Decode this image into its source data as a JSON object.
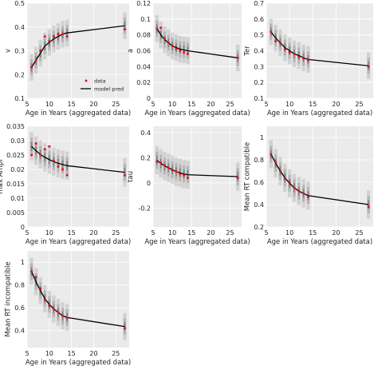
{
  "figure": {
    "xlabel": "Age in Years (aggregated data)"
  },
  "chart_data": [
    {
      "type": "scatter",
      "ylabel": "v",
      "xlabel": "Age in Years (aggregated data)",
      "xlim": [
        5,
        28
      ],
      "xticks": [
        5,
        10,
        15,
        20,
        25
      ],
      "ylim": [
        0.1,
        0.5
      ],
      "yticks": [
        0.1,
        0.2,
        0.3,
        0.4,
        0.5
      ],
      "grid": true,
      "legend": {
        "placement": "bottom-right",
        "entries": [
          "data",
          "model pred"
        ]
      },
      "series": [
        {
          "name": "data",
          "x": [
            6,
            7,
            8,
            9,
            10,
            11,
            12,
            13,
            14,
            27
          ],
          "y": [
            0.23,
            0.26,
            0.3,
            0.36,
            0.34,
            0.36,
            0.37,
            0.37,
            0.36,
            0.39
          ]
        },
        {
          "name": "model pred",
          "x": [
            6,
            7,
            8,
            9,
            10,
            11,
            12,
            13,
            14,
            27
          ],
          "y": [
            0.23,
            0.26,
            0.29,
            0.32,
            0.335,
            0.35,
            0.36,
            0.37,
            0.375,
            0.405
          ]
        }
      ]
    },
    {
      "type": "scatter",
      "ylabel": "a",
      "xlabel": "Age in Years (aggregated data)",
      "xlim": [
        5,
        28
      ],
      "xticks": [
        5,
        10,
        15,
        20,
        25
      ],
      "ylim": [
        0,
        0.12
      ],
      "yticks": [
        0,
        0.02,
        0.04,
        0.06,
        0.08,
        0.1,
        0.12
      ],
      "grid": true,
      "series": [
        {
          "name": "data",
          "x": [
            6,
            7,
            8,
            9,
            10,
            11,
            12,
            13,
            14,
            27
          ],
          "y": [
            0.088,
            0.089,
            0.075,
            0.07,
            0.066,
            0.062,
            0.06,
            0.058,
            0.056,
            0.051
          ]
        },
        {
          "name": "model pred",
          "x": [
            6,
            7,
            8,
            9,
            10,
            11,
            12,
            13,
            14,
            27
          ],
          "y": [
            0.088,
            0.08,
            0.074,
            0.07,
            0.066,
            0.064,
            0.062,
            0.061,
            0.06,
            0.051
          ]
        }
      ]
    },
    {
      "type": "scatter",
      "ylabel": "Ter",
      "xlabel": "Age in Years (aggregated data)",
      "xlim": [
        5,
        28
      ],
      "xticks": [
        5,
        10,
        15,
        20,
        25
      ],
      "ylim": [
        0.1,
        0.7
      ],
      "yticks": [
        0.1,
        0.2,
        0.3,
        0.4,
        0.5,
        0.6,
        0.7
      ],
      "grid": true,
      "series": [
        {
          "name": "data",
          "x": [
            6,
            7,
            8,
            9,
            10,
            11,
            12,
            13,
            14,
            27
          ],
          "y": [
            0.52,
            0.46,
            0.45,
            0.41,
            0.39,
            0.38,
            0.36,
            0.35,
            0.34,
            0.3
          ]
        },
        {
          "name": "model pred",
          "x": [
            6,
            7,
            8,
            9,
            10,
            11,
            12,
            13,
            14,
            27
          ],
          "y": [
            0.52,
            0.48,
            0.45,
            0.42,
            0.4,
            0.38,
            0.37,
            0.355,
            0.345,
            0.305
          ]
        }
      ]
    },
    {
      "type": "scatter",
      "ylabel": "max Ampl",
      "xlabel": "Age in Years (aggregated data)",
      "xlim": [
        5,
        28
      ],
      "xticks": [
        5,
        10,
        15,
        20,
        25
      ],
      "ylim": [
        0,
        0.035
      ],
      "yticks": [
        0,
        0.005,
        0.01,
        0.015,
        0.02,
        0.025,
        0.03,
        0.035
      ],
      "grid": true,
      "series": [
        {
          "name": "data",
          "x": [
            6,
            7,
            8,
            9,
            10,
            11,
            12,
            13,
            14,
            27
          ],
          "y": [
            0.025,
            0.029,
            0.025,
            0.027,
            0.028,
            0.023,
            0.021,
            0.02,
            0.018,
            0.018
          ]
        },
        {
          "name": "model pred",
          "x": [
            6,
            7,
            8,
            9,
            10,
            11,
            12,
            13,
            14,
            27
          ],
          "y": [
            0.028,
            0.0265,
            0.0252,
            0.0242,
            0.0234,
            0.0227,
            0.0221,
            0.0217,
            0.0213,
            0.019
          ]
        }
      ]
    },
    {
      "type": "scatter",
      "ylabel": "tau",
      "xlabel": "Age in Years (aggregated data)",
      "xlim": [
        5,
        28
      ],
      "xticks": [
        5,
        10,
        15,
        20,
        25
      ],
      "ylim": [
        -0.35,
        0.45
      ],
      "yticks": [
        -0.2,
        0,
        0.2,
        0.4
      ],
      "grid": true,
      "series": [
        {
          "name": "data",
          "x": [
            6,
            7,
            8,
            9,
            10,
            11,
            12,
            13,
            14,
            27
          ],
          "y": [
            0.17,
            0.16,
            0.14,
            0.12,
            0.1,
            0.09,
            0.07,
            0.06,
            0.04,
            0.04
          ]
        },
        {
          "name": "model pred",
          "x": [
            6,
            7,
            8,
            9,
            10,
            11,
            12,
            13,
            14,
            27
          ],
          "y": [
            0.18,
            0.155,
            0.135,
            0.12,
            0.105,
            0.09,
            0.08,
            0.07,
            0.065,
            0.05
          ]
        }
      ]
    },
    {
      "type": "scatter",
      "ylabel": "Mean RT compatible",
      "xlabel": "Age in Years (aggregated data)",
      "xlim": [
        5,
        28
      ],
      "xticks": [
        5,
        10,
        15,
        20,
        25
      ],
      "ylim": [
        0.2,
        1.1
      ],
      "yticks": [
        0.2,
        0.4,
        0.6,
        0.8,
        1.0
      ],
      "grid": true,
      "series": [
        {
          "name": "data",
          "x": [
            6,
            7,
            8,
            9,
            10,
            11,
            12,
            13,
            14,
            27
          ],
          "y": [
            0.85,
            0.78,
            0.7,
            0.63,
            0.6,
            0.55,
            0.52,
            0.5,
            0.47,
            0.38
          ]
        },
        {
          "name": "model pred",
          "x": [
            6,
            7,
            8,
            9,
            10,
            11,
            12,
            13,
            14,
            27
          ],
          "y": [
            0.85,
            0.77,
            0.7,
            0.64,
            0.59,
            0.55,
            0.52,
            0.5,
            0.48,
            0.4
          ]
        }
      ]
    },
    {
      "type": "scatter",
      "ylabel": "Mean RT incompatible",
      "xlabel": "Age in Years (aggregated data)",
      "xlim": [
        5,
        28
      ],
      "xticks": [
        5,
        10,
        15,
        20,
        25
      ],
      "ylim": [
        0.25,
        1.1
      ],
      "yticks": [
        0.4,
        0.6,
        0.8,
        1.0
      ],
      "grid": true,
      "series": [
        {
          "name": "data",
          "x": [
            6,
            7,
            8,
            9,
            10,
            11,
            12,
            13,
            14,
            27
          ],
          "y": [
            0.92,
            0.87,
            0.77,
            0.67,
            0.62,
            0.59,
            0.56,
            0.53,
            0.51,
            0.42
          ]
        },
        {
          "name": "model pred",
          "x": [
            6,
            7,
            8,
            9,
            10,
            11,
            12,
            13,
            14,
            27
          ],
          "y": [
            0.92,
            0.83,
            0.75,
            0.68,
            0.63,
            0.59,
            0.56,
            0.53,
            0.515,
            0.435
          ]
        }
      ]
    }
  ],
  "colors": {
    "panel_bg": "#ebebeb",
    "grid": "#ffffff",
    "data": "#e8121b",
    "model": "#000000",
    "band": "#8e8e8e"
  }
}
